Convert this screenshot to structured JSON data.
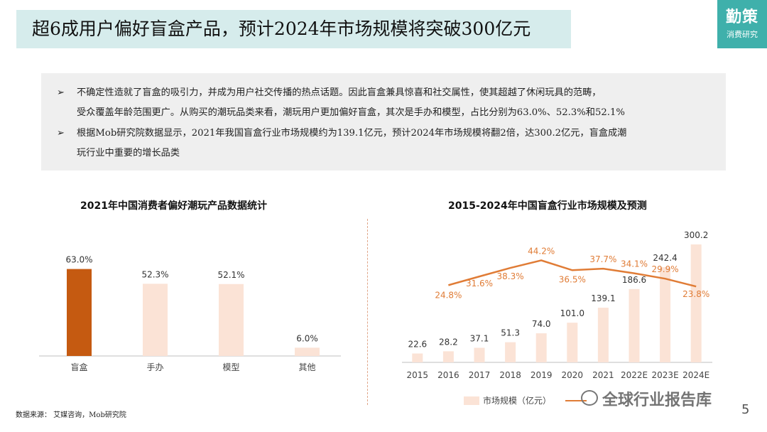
{
  "header": {
    "title": "超6成用户偏好盲盒产品，预计2024年市场规模将突破300亿元",
    "brand_main": "勤策",
    "brand_sub": "消费研究"
  },
  "summary": {
    "bullet_glyph": "➢",
    "lines": [
      "不确定性造就了盲盒的吸引力，并成为用户社交传播的热点话题。因此盲盒兼具惊喜和社交属性，使其超越了休闲玩具的范畴，",
      "受众覆盖年龄范围更广。从购买的潮玩品类来看，潮玩用户更加偏好盲盒，其次是手办和模型，占比分别为63.0%、52.3%和52.1%",
      "根据Mob研究院数据显示，2021年我国盲盒行业市场规模约为139.1亿元，预计2024年市场规模将翻2倍，达300.2亿元，盲盒成潮",
      "玩行业中重要的增长品类"
    ]
  },
  "chart_data": [
    {
      "type": "bar",
      "title": "2021年中国消费者偏好潮玩产品数据统计",
      "categories": [
        "盲盒",
        "手办",
        "模型",
        "其他"
      ],
      "values": [
        63.0,
        52.3,
        52.1,
        6.0
      ],
      "value_labels": [
        "63.0%",
        "52.3%",
        "52.1%",
        "6.0%"
      ],
      "highlight_color": "#c55a11",
      "bar_color": "#fbe3d6",
      "ylim": [
        0,
        70
      ],
      "grid": false
    },
    {
      "type": "bar+line",
      "title": "2015-2024年中国盲盒行业市场规模及预测",
      "categories": [
        "2015",
        "2016",
        "2017",
        "2018",
        "2019",
        "2020",
        "2021",
        "2022E",
        "2023E",
        "2024E"
      ],
      "series": [
        {
          "name": "市场规模（亿元）",
          "type": "bar",
          "values": [
            22.6,
            28.2,
            37.1,
            51.3,
            74.0,
            101.0,
            139.1,
            186.6,
            242.4,
            300.2
          ],
          "value_labels": [
            "22.6",
            "28.2",
            "37.1",
            "51.3",
            "74.0",
            "101.0",
            "139.1",
            "186.6",
            "242.4",
            "300.2"
          ],
          "color": "#fbe3d6"
        },
        {
          "type": "line",
          "x": [
            "2016",
            "2017",
            "2018",
            "2019",
            "2020",
            "2021",
            "2022E",
            "2023E",
            "2024E"
          ],
          "values": [
            24.8,
            31.6,
            38.3,
            44.2,
            36.5,
            37.7,
            34.1,
            29.9,
            23.8
          ],
          "value_labels": [
            "24.8%",
            "31.6%",
            "38.3%",
            "44.2%",
            "36.5%",
            "37.7%",
            "34.1%",
            "29.9%",
            "23.8%"
          ],
          "color": "#e07c36"
        }
      ],
      "legend": "bottom",
      "grid": false
    }
  ],
  "footer": {
    "source": "数据来源：  艾媒咨询，Mob研究院",
    "watermark": "全球行业报告库",
    "page_number": "5"
  }
}
